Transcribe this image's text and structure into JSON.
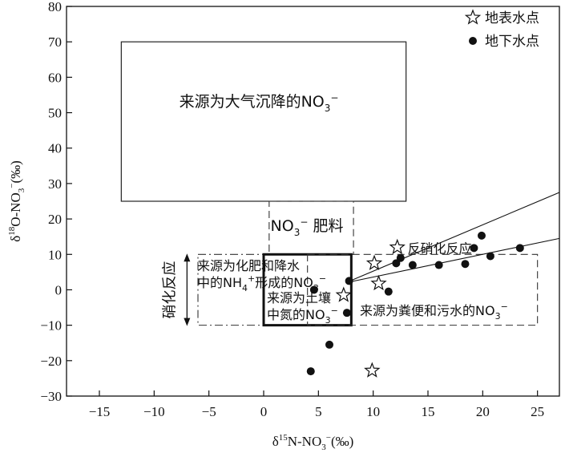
{
  "chart_data": {
    "type": "scatter",
    "title": "",
    "xlabel": {
      "base": "δ",
      "sup": "15",
      "main": "N-NO",
      "sub": "3",
      "sup2": "−",
      "unit": "(‰)"
    },
    "ylabel": {
      "base": "δ",
      "sup": "18",
      "main": "O-NO",
      "sub": "3",
      "sup2": "−",
      "unit": "(‰)"
    },
    "xlim": [
      -18,
      27
    ],
    "ylim": [
      -30,
      80
    ],
    "xticks": [
      -15,
      -10,
      -5,
      0,
      5,
      10,
      15,
      20,
      25
    ],
    "yticks": [
      -30,
      -20,
      -10,
      0,
      10,
      20,
      30,
      40,
      50,
      60,
      70,
      80
    ],
    "legend": {
      "position": "top-right",
      "items": [
        {
          "marker": "star",
          "label": "地表水点"
        },
        {
          "marker": "dot",
          "label": "地下水点"
        }
      ]
    },
    "series": [
      {
        "name": "地表水点",
        "marker": "star",
        "points": [
          {
            "x": 12.2,
            "y": 12
          },
          {
            "x": 10.1,
            "y": 7.5
          },
          {
            "x": 10.5,
            "y": 1.8
          },
          {
            "x": 7.3,
            "y": -1.5
          },
          {
            "x": 9.9,
            "y": -22.8
          }
        ]
      },
      {
        "name": "地下水点",
        "marker": "dot",
        "points": [
          {
            "x": 4.6,
            "y": 0
          },
          {
            "x": 7.8,
            "y": 2.5
          },
          {
            "x": 7.6,
            "y": -6.5
          },
          {
            "x": 6.0,
            "y": -15.5
          },
          {
            "x": 4.3,
            "y": -23
          },
          {
            "x": 12.1,
            "y": 7.5
          },
          {
            "x": 12.5,
            "y": 9
          },
          {
            "x": 13.6,
            "y": 7
          },
          {
            "x": 11.4,
            "y": -0.5
          },
          {
            "x": 16.0,
            "y": 7
          },
          {
            "x": 18.4,
            "y": 7.3
          },
          {
            "x": 19.2,
            "y": 11.8
          },
          {
            "x": 19.9,
            "y": 15.3
          },
          {
            "x": 20.7,
            "y": 9.5
          },
          {
            "x": 23.4,
            "y": 11.8
          }
        ]
      }
    ],
    "regions": [
      {
        "label_main": "来源为大气沉降的NO",
        "label_sub": "3",
        "label_sup": "−",
        "x": [
          -13,
          13
        ],
        "y": [
          25,
          70
        ],
        "style": "solid"
      },
      {
        "label_main": "NO",
        "label_sub": "3",
        "label_sup": "−",
        "label_tail": " 肥料",
        "x": [
          0.5,
          8.2
        ],
        "y": [
          10,
          25
        ],
        "style": "dashed"
      },
      {
        "label_lines": [
          "来源为化肥和降水",
          "中的NH",
          "形成的NO"
        ],
        "label_sub": "4",
        "label_sup": "+",
        "label_sub2": "3",
        "label_sup2": "−",
        "x": [
          -6,
          8
        ],
        "y": [
          -10,
          10
        ],
        "style": "dashdot"
      },
      {
        "label_lines": [
          "来源为土壤",
          "中氮的NO"
        ],
        "label_sub": "3",
        "label_sup": "−",
        "x": [
          0,
          8
        ],
        "y": [
          -10,
          10
        ],
        "style": "bold"
      },
      {
        "label_main": "来源为粪便和污水的NO",
        "label_sub": "3",
        "label_sup": "−",
        "x": [
          4,
          25
        ],
        "y": [
          -10,
          10
        ],
        "style": "dashed"
      }
    ],
    "trend_lines": [
      {
        "from": [
          7.5,
          2
        ],
        "to": [
          27,
          27.5
        ]
      },
      {
        "from": [
          7.5,
          2
        ],
        "to": [
          27,
          14.5
        ]
      }
    ],
    "annotations": [
      {
        "text": "反硝化反应",
        "x": 13,
        "y": 12
      },
      {
        "text": "硝化反应",
        "arrow_x": -7,
        "arrow_y": [
          -10,
          10
        ]
      }
    ]
  }
}
